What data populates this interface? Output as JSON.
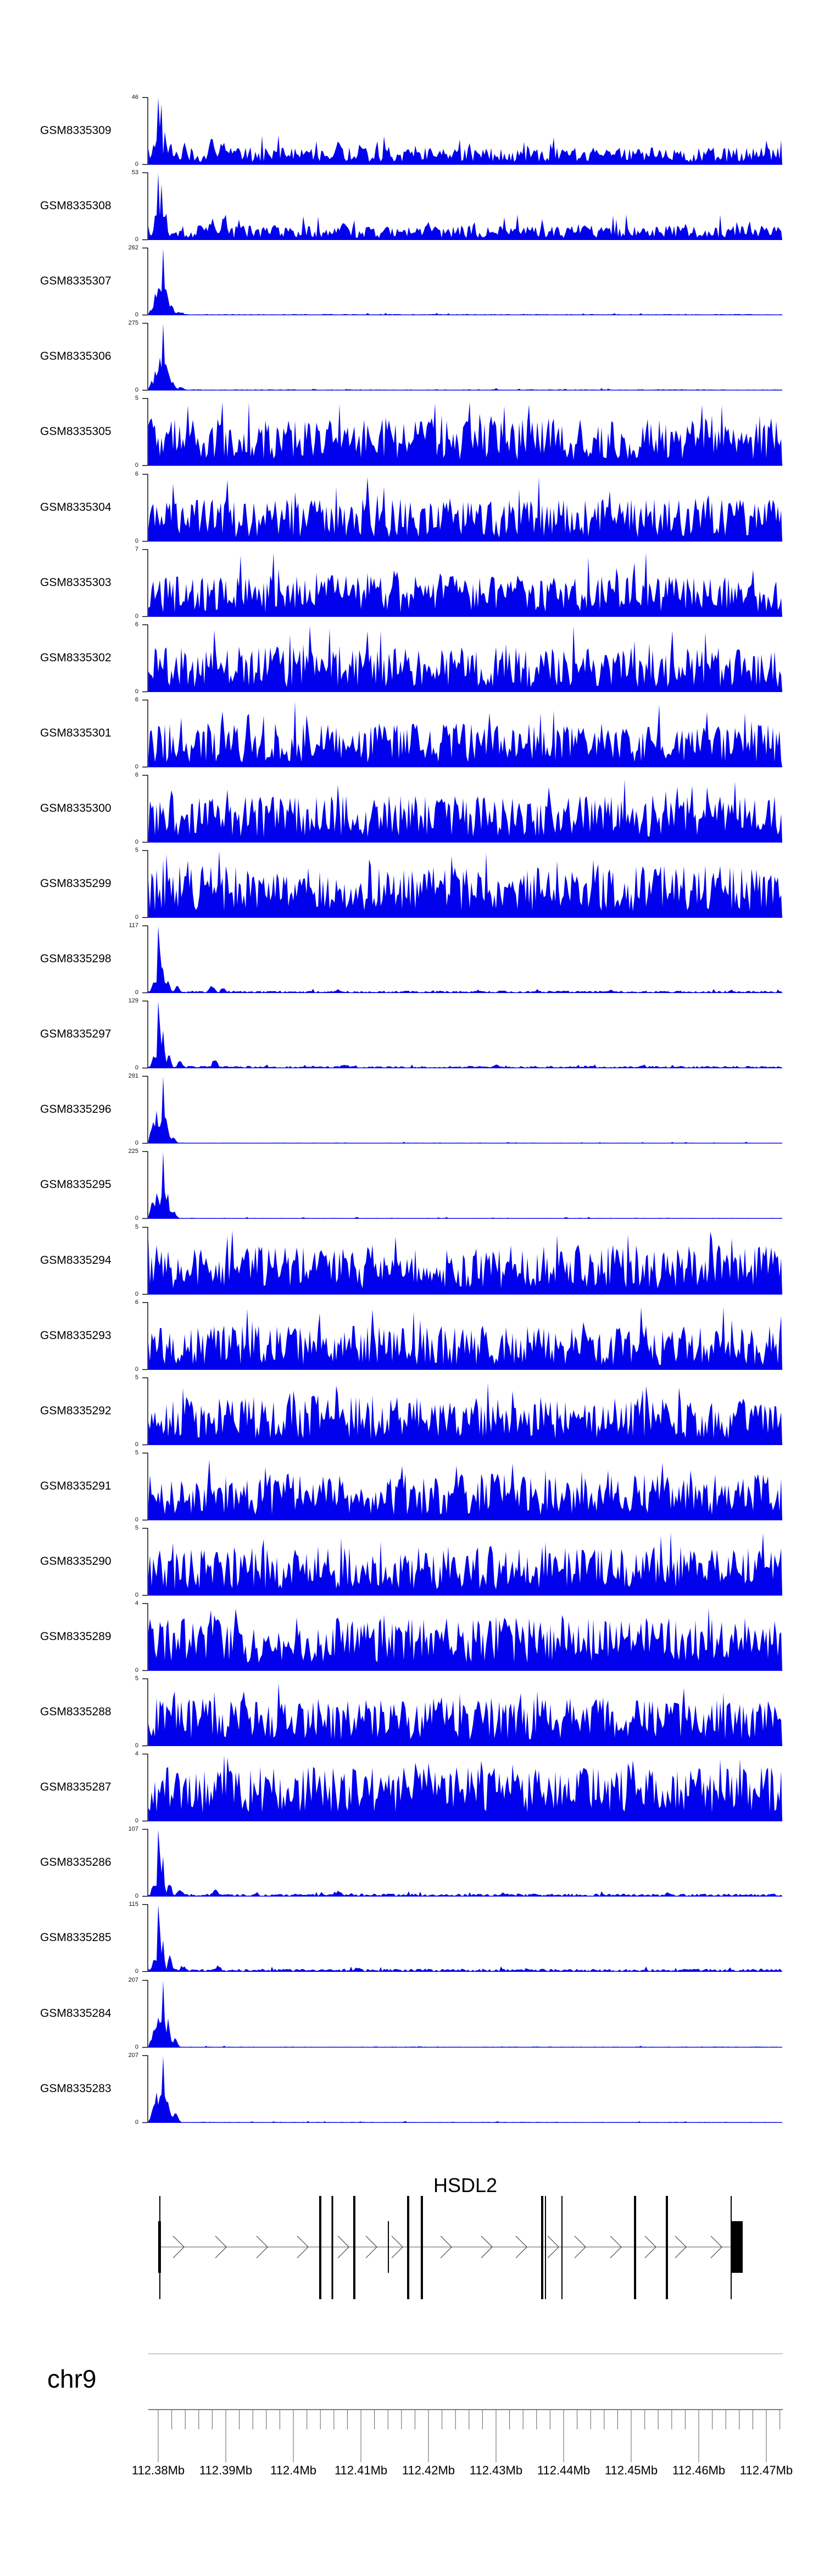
{
  "figure": {
    "kind": "genome-browser-coverage-figure",
    "background": "#ffffff",
    "y_zero_label": "0"
  },
  "colors": {
    "signal": "#0101EE",
    "axis_bracket": "#000000",
    "ruler_line": "#555555",
    "tick": "#6e6e6e",
    "label_text": "#000000",
    "exon": "#000000",
    "gene_center_line": "#777777",
    "arrow": "#444444",
    "separator": "#999999"
  },
  "chart_data": {
    "type": "area",
    "title": "",
    "region": {
      "chromosome": "chr9",
      "x_range_mb": [
        112.378,
        112.472
      ],
      "x_tick_labels": [
        "112.38Mb",
        "112.39Mb",
        "112.4Mb",
        "112.41Mb",
        "112.42Mb",
        "112.43Mb",
        "112.44Mb",
        "112.45Mb",
        "112.46Mb",
        "112.47Mb"
      ],
      "unit": "Mb"
    },
    "axis": {
      "majors": [
        [
          0.0156,
          "112.38Mb"
        ],
        [
          0.1222,
          "112.39Mb"
        ],
        [
          0.2288,
          "112.4Mb"
        ],
        [
          0.3354,
          "112.41Mb"
        ],
        [
          0.4419,
          "112.42Mb"
        ],
        [
          0.5485,
          "112.43Mb"
        ],
        [
          0.6551,
          "112.44Mb"
        ],
        [
          0.7617,
          "112.45Mb"
        ],
        [
          0.8683,
          "112.46Mb"
        ],
        [
          0.9749,
          "112.47Mb"
        ]
      ],
      "minor_step_frac": 0.021317,
      "minors_per_major": 4
    },
    "gene": {
      "name": "HSDL2",
      "strand": "+",
      "line": [
        0.0182,
        0.9202
      ],
      "exons_tall": [
        [
          0.0182,
          2
        ],
        [
          0.2712,
          4
        ],
        [
          0.2903,
          3
        ],
        [
          0.3249,
          4
        ],
        [
          0.4099,
          4
        ],
        [
          0.4315,
          4
        ],
        [
          0.6213,
          4
        ],
        [
          0.6265,
          2
        ],
        [
          0.6525,
          2
        ],
        [
          0.7678,
          4
        ],
        [
          0.818,
          4
        ],
        [
          0.9194,
          2
        ]
      ],
      "exons_mid": [
        [
          0.0177,
          5
        ],
        [
          0.3787,
          2
        ]
      ],
      "utr_box": [
        0.9202,
        0.9376
      ],
      "arrows": [
        0.0477,
        0.1144,
        0.1794,
        0.2435,
        0.3077,
        0.3518,
        0.3926,
        0.4697,
        0.5338,
        0.5884,
        0.6387,
        0.6811,
        0.7374,
        0.792,
        0.8397,
        0.896
      ]
    },
    "tracks": [
      {
        "label": "GSM8335309",
        "ymax": "46",
        "seed": 11,
        "noise": [
          0.04,
          0.26
        ],
        "spike_p": 0.1,
        "spike_gain": 1.7,
        "peaks": [
          [
            0.01,
            0.35,
            4
          ],
          [
            0.0156,
            1.0,
            3
          ],
          [
            0.02,
            0.9,
            3
          ],
          [
            0.027,
            0.5,
            4
          ],
          [
            0.035,
            0.28,
            5
          ],
          [
            0.1,
            0.33,
            9
          ],
          [
            0.118,
            0.4,
            8
          ],
          [
            0.14,
            0.28,
            7
          ],
          [
            0.3,
            0.34,
            9
          ],
          [
            0.335,
            0.27,
            7
          ],
          [
            0.52,
            0.22,
            7
          ],
          [
            0.74,
            0.24,
            6
          ],
          [
            0.975,
            0.3,
            5
          ]
        ]
      },
      {
        "label": "GSM8335308",
        "ymax": "53",
        "seed": 22,
        "noise": [
          0.03,
          0.22
        ],
        "spike_p": 0.1,
        "spike_gain": 1.8,
        "peaks": [
          [
            0.01,
            0.25,
            4
          ],
          [
            0.0156,
            1.0,
            3
          ],
          [
            0.021,
            0.78,
            3
          ],
          [
            0.028,
            0.4,
            4
          ],
          [
            0.1,
            0.3,
            8
          ],
          [
            0.12,
            0.34,
            8
          ],
          [
            0.145,
            0.24,
            7
          ],
          [
            0.31,
            0.26,
            8
          ],
          [
            0.56,
            0.2,
            7
          ],
          [
            0.78,
            0.22,
            6
          ],
          [
            0.975,
            0.26,
            5
          ]
        ]
      },
      {
        "label": "GSM8335307",
        "ymax": "262",
        "seed": 33,
        "noise": [
          0.004,
          0.018
        ],
        "spike_p": 0.04,
        "spike_gain": 2.0,
        "peaks": [
          [
            0.007,
            0.12,
            6
          ],
          [
            0.013,
            0.33,
            6
          ],
          [
            0.018,
            0.45,
            5
          ],
          [
            0.0235,
            1.0,
            3
          ],
          [
            0.029,
            0.33,
            5
          ],
          [
            0.036,
            0.16,
            6
          ],
          [
            0.05,
            0.05,
            8
          ]
        ]
      },
      {
        "label": "GSM8335306",
        "ymax": "275",
        "seed": 44,
        "noise": [
          0.004,
          0.018
        ],
        "spike_p": 0.04,
        "spike_gain": 2.0,
        "peaks": [
          [
            0.007,
            0.14,
            6
          ],
          [
            0.0125,
            0.3,
            6
          ],
          [
            0.018,
            0.48,
            5
          ],
          [
            0.0235,
            1.0,
            3
          ],
          [
            0.03,
            0.36,
            5
          ],
          [
            0.038,
            0.14,
            6
          ],
          [
            0.052,
            0.05,
            8
          ]
        ]
      },
      {
        "label": "GSM8335305",
        "ymax": "5",
        "seed": 55,
        "noise": [
          0.08,
          0.72
        ],
        "spike_p": 0.12,
        "spike_gain": 1.35,
        "peaks": []
      },
      {
        "label": "GSM8335304",
        "ymax": "6",
        "seed": 66,
        "noise": [
          0.06,
          0.65
        ],
        "spike_p": 0.1,
        "spike_gain": 1.5,
        "peaks": []
      },
      {
        "label": "GSM8335303",
        "ymax": "7",
        "seed": 77,
        "noise": [
          0.06,
          0.62
        ],
        "spike_p": 0.1,
        "spike_gain": 1.55,
        "peaks": []
      },
      {
        "label": "GSM8335302",
        "ymax": "6",
        "seed": 88,
        "noise": [
          0.07,
          0.68
        ],
        "spike_p": 0.1,
        "spike_gain": 1.45,
        "peaks": []
      },
      {
        "label": "GSM8335301",
        "ymax": "6",
        "seed": 99,
        "noise": [
          0.07,
          0.66
        ],
        "spike_p": 0.11,
        "spike_gain": 1.5,
        "peaks": []
      },
      {
        "label": "GSM8335300",
        "ymax": "6",
        "seed": 110,
        "noise": [
          0.08,
          0.7
        ],
        "spike_p": 0.1,
        "spike_gain": 1.4,
        "peaks": []
      },
      {
        "label": "GSM8335299",
        "ymax": "5",
        "seed": 121,
        "noise": [
          0.1,
          0.78
        ],
        "spike_p": 0.12,
        "spike_gain": 1.3,
        "peaks": []
      },
      {
        "label": "GSM8335298",
        "ymax": "117",
        "seed": 132,
        "noise": [
          0.006,
          0.035
        ],
        "spike_p": 0.05,
        "spike_gain": 1.8,
        "peaks": [
          [
            0.009,
            0.2,
            5
          ],
          [
            0.0165,
            1.0,
            3
          ],
          [
            0.0225,
            0.45,
            4
          ],
          [
            0.031,
            0.2,
            5
          ],
          [
            0.046,
            0.09,
            6
          ],
          [
            0.1,
            0.11,
            7
          ],
          [
            0.118,
            0.08,
            6
          ],
          [
            0.3,
            0.05,
            9
          ],
          [
            0.52,
            0.045,
            8
          ],
          [
            0.73,
            0.045,
            8
          ],
          [
            0.92,
            0.04,
            7
          ]
        ]
      },
      {
        "label": "GSM8335297",
        "ymax": "129",
        "seed": 143,
        "noise": [
          0.006,
          0.035
        ],
        "spike_p": 0.05,
        "spike_gain": 1.8,
        "peaks": [
          [
            0.009,
            0.22,
            5
          ],
          [
            0.0165,
            1.0,
            3
          ],
          [
            0.023,
            0.48,
            4
          ],
          [
            0.032,
            0.22,
            5
          ],
          [
            0.05,
            0.1,
            6
          ],
          [
            0.105,
            0.12,
            7
          ],
          [
            0.31,
            0.06,
            9
          ],
          [
            0.55,
            0.05,
            8
          ],
          [
            0.78,
            0.05,
            8
          ]
        ]
      },
      {
        "label": "GSM8335296",
        "ymax": "291",
        "seed": 154,
        "noise": [
          0.003,
          0.014
        ],
        "spike_p": 0.04,
        "spike_gain": 2.0,
        "peaks": [
          [
            0.008,
            0.26,
            7
          ],
          [
            0.014,
            0.4,
            6
          ],
          [
            0.0235,
            1.0,
            3
          ],
          [
            0.0295,
            0.3,
            5
          ],
          [
            0.039,
            0.12,
            6
          ]
        ]
      },
      {
        "label": "GSM8335295",
        "ymax": "225",
        "seed": 165,
        "noise": [
          0.003,
          0.014
        ],
        "spike_p": 0.04,
        "spike_gain": 2.0,
        "peaks": [
          [
            0.008,
            0.3,
            7
          ],
          [
            0.0145,
            0.45,
            6
          ],
          [
            0.0235,
            1.0,
            3
          ],
          [
            0.03,
            0.33,
            5
          ],
          [
            0.04,
            0.13,
            6
          ]
        ]
      },
      {
        "label": "GSM8335294",
        "ymax": "5",
        "seed": 176,
        "noise": [
          0.09,
          0.75
        ],
        "spike_p": 0.12,
        "spike_gain": 1.3,
        "peaks": []
      },
      {
        "label": "GSM8335293",
        "ymax": "6",
        "seed": 187,
        "noise": [
          0.07,
          0.66
        ],
        "spike_p": 0.1,
        "spike_gain": 1.45,
        "peaks": []
      },
      {
        "label": "GSM8335292",
        "ymax": "5",
        "seed": 198,
        "noise": [
          0.09,
          0.72
        ],
        "spike_p": 0.11,
        "spike_gain": 1.35,
        "peaks": []
      },
      {
        "label": "GSM8335291",
        "ymax": "5",
        "seed": 209,
        "noise": [
          0.08,
          0.7
        ],
        "spike_p": 0.12,
        "spike_gain": 1.35,
        "peaks": []
      },
      {
        "label": "GSM8335290",
        "ymax": "5",
        "seed": 220,
        "noise": [
          0.09,
          0.74
        ],
        "spike_p": 0.11,
        "spike_gain": 1.3,
        "peaks": []
      },
      {
        "label": "GSM8335289",
        "ymax": "4",
        "seed": 231,
        "noise": [
          0.12,
          0.8
        ],
        "spike_p": 0.12,
        "spike_gain": 1.25,
        "peaks": []
      },
      {
        "label": "GSM8335288",
        "ymax": "5",
        "seed": 242,
        "noise": [
          0.09,
          0.73
        ],
        "spike_p": 0.11,
        "spike_gain": 1.33,
        "peaks": []
      },
      {
        "label": "GSM8335287",
        "ymax": "4",
        "seed": 253,
        "noise": [
          0.13,
          0.82
        ],
        "spike_p": 0.12,
        "spike_gain": 1.22,
        "peaks": []
      },
      {
        "label": "GSM8335286",
        "ymax": "107",
        "seed": 264,
        "noise": [
          0.008,
          0.045
        ],
        "spike_p": 0.05,
        "spike_gain": 1.8,
        "peaks": [
          [
            0.009,
            0.22,
            5
          ],
          [
            0.0165,
            1.0,
            3
          ],
          [
            0.0225,
            0.5,
            4
          ],
          [
            0.033,
            0.22,
            5
          ],
          [
            0.05,
            0.1,
            7
          ],
          [
            0.105,
            0.1,
            7
          ],
          [
            0.3,
            0.07,
            10
          ],
          [
            0.56,
            0.06,
            9
          ],
          [
            0.82,
            0.06,
            8
          ]
        ]
      },
      {
        "label": "GSM8335285",
        "ymax": "115",
        "seed": 275,
        "noise": [
          0.008,
          0.045
        ],
        "spike_p": 0.05,
        "spike_gain": 1.8,
        "peaks": [
          [
            0.009,
            0.2,
            5
          ],
          [
            0.0165,
            1.0,
            3
          ],
          [
            0.023,
            0.46,
            4
          ],
          [
            0.034,
            0.2,
            5
          ],
          [
            0.055,
            0.09,
            7
          ],
          [
            0.11,
            0.09,
            7
          ],
          [
            0.33,
            0.06,
            9
          ],
          [
            0.6,
            0.05,
            9
          ],
          [
            0.85,
            0.05,
            8
          ]
        ]
      },
      {
        "label": "GSM8335284",
        "ymax": "207",
        "seed": 286,
        "noise": [
          0.004,
          0.016
        ],
        "spike_p": 0.04,
        "spike_gain": 2.0,
        "peaks": [
          [
            0.008,
            0.22,
            6
          ],
          [
            0.014,
            0.4,
            6
          ],
          [
            0.019,
            0.52,
            5
          ],
          [
            0.0235,
            1.0,
            3
          ],
          [
            0.031,
            0.36,
            6
          ],
          [
            0.042,
            0.12,
            7
          ]
        ]
      },
      {
        "label": "GSM8335283",
        "ymax": "207",
        "seed": 297,
        "noise": [
          0.004,
          0.016
        ],
        "spike_p": 0.04,
        "spike_gain": 2.0,
        "peaks": [
          [
            0.008,
            0.2,
            6
          ],
          [
            0.014,
            0.38,
            6
          ],
          [
            0.0195,
            0.5,
            5
          ],
          [
            0.0235,
            1.0,
            3
          ],
          [
            0.031,
            0.34,
            6
          ],
          [
            0.043,
            0.12,
            7
          ]
        ]
      }
    ]
  }
}
